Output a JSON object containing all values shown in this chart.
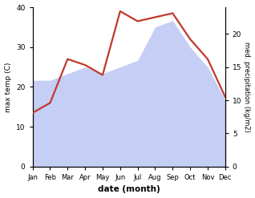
{
  "months": [
    "Jan",
    "Feb",
    "Mar",
    "Apr",
    "May",
    "Jun",
    "Jul",
    "Aug",
    "Sep",
    "Oct",
    "Nov",
    "Dec"
  ],
  "temp_max": [
    13.5,
    16.0,
    27.0,
    25.5,
    23.0,
    39.0,
    36.5,
    37.5,
    38.5,
    32.0,
    27.0,
    17.5
  ],
  "precipitation": [
    13.0,
    13.0,
    14.0,
    15.0,
    14.0,
    15.0,
    16.0,
    21.0,
    22.0,
    18.0,
    15.0,
    10.0
  ],
  "temp_color": "#c0392b",
  "precip_fill_color": "#c5cef5",
  "temp_ylim": [
    0,
    40
  ],
  "precip_ylim": [
    0,
    24
  ],
  "ylabel_left": "max temp (C)",
  "ylabel_right": "med. precipitation (kg/m2)",
  "xlabel": "date (month)",
  "temp_yticks": [
    0,
    10,
    20,
    30,
    40
  ],
  "precip_yticks": [
    0,
    5,
    10,
    15,
    20
  ],
  "background_color": "#ffffff",
  "line_width": 1.6
}
